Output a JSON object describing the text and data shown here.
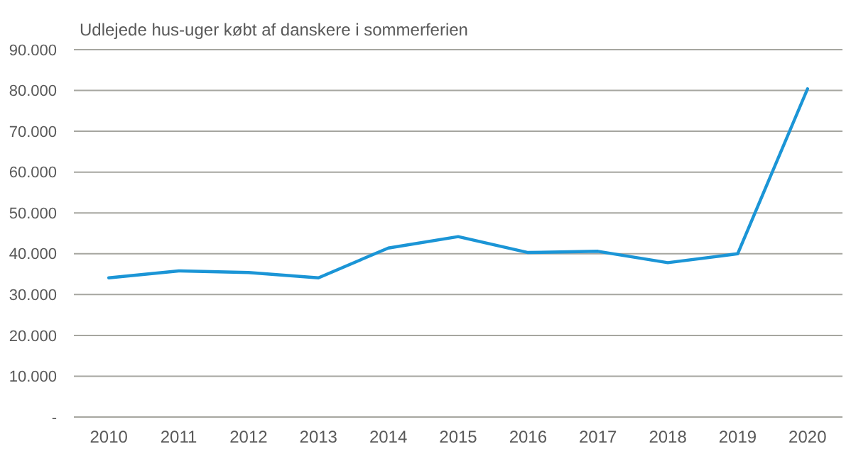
{
  "chart_data": {
    "type": "line",
    "title": "Udlejede hus-uger købt af danskere i sommerferien",
    "categories": [
      "2010",
      "2011",
      "2012",
      "2013",
      "2014",
      "2015",
      "2016",
      "2017",
      "2018",
      "2019",
      "2020"
    ],
    "series": [
      {
        "color": "#1b95d6",
        "values": [
          34100,
          35800,
          35400,
          34100,
          41400,
          44200,
          40300,
          40600,
          37800,
          40000,
          80400
        ]
      }
    ],
    "ylim": [
      0,
      90000
    ],
    "yticks": [
      {
        "value": 0,
        "label": "-"
      },
      {
        "value": 10000,
        "label": "10.000"
      },
      {
        "value": 20000,
        "label": "20.000"
      },
      {
        "value": 30000,
        "label": "30.000"
      },
      {
        "value": 40000,
        "label": "40.000"
      },
      {
        "value": 50000,
        "label": "50.000"
      },
      {
        "value": 60000,
        "label": "60.000"
      },
      {
        "value": 70000,
        "label": "70.000"
      },
      {
        "value": 80000,
        "label": "80.000"
      },
      {
        "value": 90000,
        "label": "90.000"
      }
    ],
    "grid": "y",
    "marker": "none",
    "line_style": "solid"
  }
}
